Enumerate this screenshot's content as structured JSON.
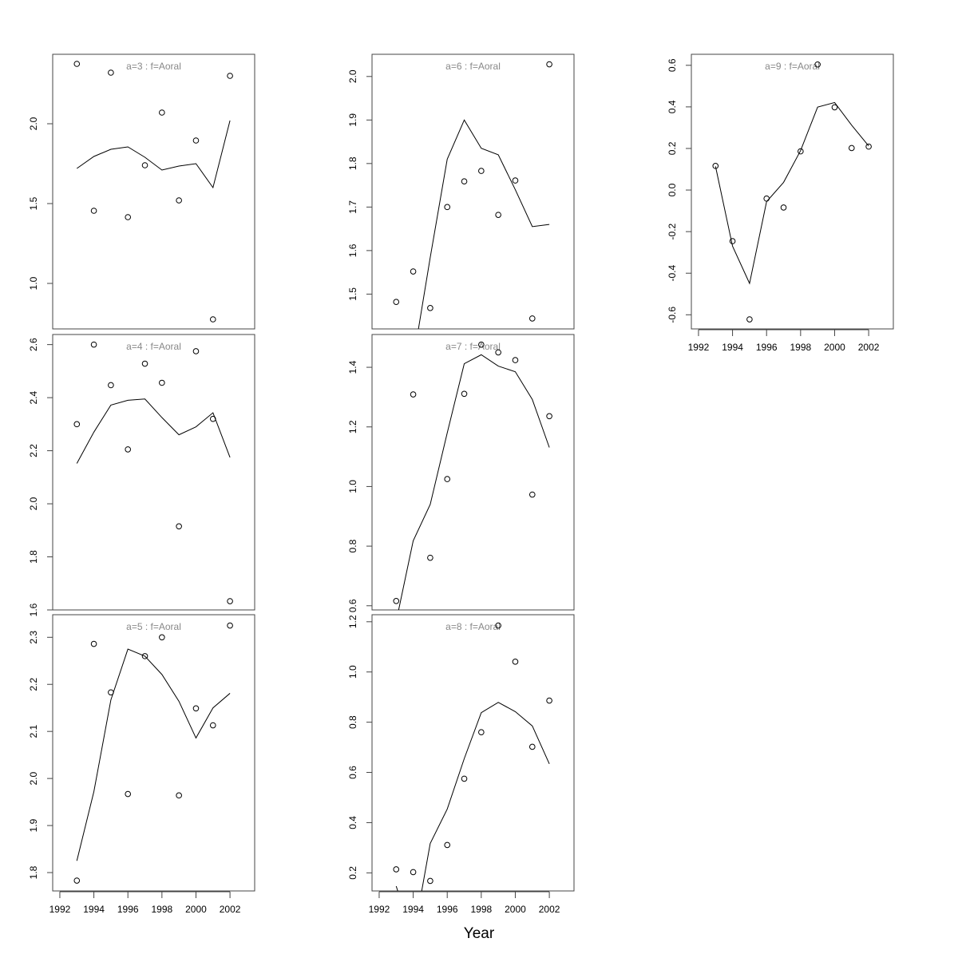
{
  "chart_data": {
    "type": "scatter+line",
    "xlabel": "Year",
    "x": [
      1993,
      1994,
      1995,
      1996,
      1997,
      1998,
      1999,
      2000,
      2001,
      2002
    ],
    "xlim": [
      1991.58,
      2003.45
    ],
    "xticks": [
      "1992",
      "1994",
      "1996",
      "1998",
      "2000",
      "2002"
    ],
    "grid": false,
    "title_color": "#888888",
    "panels": [
      {
        "title": "a=3  :  f=Aoral",
        "ylim": [
          0.715,
          2.435
        ],
        "yticks": [
          "1.0",
          "1.5",
          "2.0"
        ],
        "points": [
          2.375,
          1.455,
          2.32,
          1.415,
          1.74,
          2.07,
          1.52,
          1.895,
          0.775,
          2.3
        ],
        "line": [
          1.72,
          1.795,
          1.84,
          1.855,
          1.79,
          1.71,
          1.735,
          1.75,
          1.6,
          2.02
        ]
      },
      {
        "title": "a=4  :  f=Aoral",
        "ylim": [
          1.6,
          2.638
        ],
        "yticks": [
          "1.6",
          "1.8",
          "2.0",
          "2.2",
          "2.4",
          "2.6"
        ],
        "points": [
          2.3,
          2.6,
          2.447,
          2.205,
          2.528,
          2.456,
          1.915,
          2.575,
          2.32,
          1.633
        ],
        "line": [
          2.152,
          2.27,
          2.372,
          2.39,
          2.395,
          2.325,
          2.26,
          2.29,
          2.343,
          2.175
        ]
      },
      {
        "title": "a=5  :  f=Aoral",
        "ylim": [
          1.761,
          2.348
        ],
        "yticks": [
          "1.8",
          "1.9",
          "2.0",
          "2.1",
          "2.2",
          "2.3"
        ],
        "points": [
          1.783,
          2.286,
          2.183,
          1.967,
          2.26,
          2.3,
          1.964,
          2.149,
          2.113,
          2.325
        ],
        "line": [
          1.825,
          1.972,
          2.167,
          2.275,
          2.26,
          2.221,
          2.164,
          2.086,
          2.15,
          2.181
        ]
      },
      {
        "title": "a=6  :  f=Aoral",
        "ylim": [
          1.42,
          2.051
        ],
        "yticks": [
          "1.5",
          "1.6",
          "1.7",
          "1.8",
          "1.9",
          "2.0"
        ],
        "points": [
          1.482,
          1.552,
          1.468,
          1.7,
          1.759,
          1.783,
          1.682,
          1.761,
          1.444,
          2.028
        ],
        "line": [
          1.2,
          1.347,
          1.584,
          1.81,
          1.9,
          1.835,
          1.82,
          1.74,
          1.655,
          1.66
        ]
      },
      {
        "title": "a=7  :  f=Aoral",
        "ylim": [
          0.586,
          1.51
        ],
        "yticks": [
          "0.6",
          "0.8",
          "1.0",
          "1.2",
          "1.4"
        ],
        "points": [
          0.616,
          1.309,
          0.761,
          1.025,
          1.311,
          1.476,
          1.45,
          1.424,
          0.973,
          1.236
        ],
        "line": [
          0.547,
          0.818,
          0.94,
          1.18,
          1.412,
          1.442,
          1.404,
          1.385,
          1.292,
          1.131
        ]
      },
      {
        "title": "a=8  :  f=Aoral",
        "ylim": [
          0.128,
          1.228
        ],
        "yticks": [
          "0.2",
          "0.4",
          "0.6",
          "0.8",
          "1.0",
          "1.2"
        ],
        "points": [
          0.214,
          0.203,
          0.168,
          0.311,
          0.575,
          0.76,
          1.185,
          1.041,
          0.702,
          0.886
        ],
        "line": [
          0.147,
          -0.061,
          0.317,
          0.454,
          0.655,
          0.838,
          0.879,
          0.842,
          0.785,
          0.634
        ]
      },
      {
        "title": "a=9  :  f=Aoral",
        "ylim": [
          -0.668,
          0.653
        ],
        "yticks": [
          "-0.6",
          "-0.4",
          "-0.2",
          "0.0",
          "0.2",
          "0.4",
          "0.6"
        ],
        "points": [
          0.116,
          -0.246,
          -0.622,
          -0.041,
          -0.084,
          0.186,
          0.604,
          0.398,
          0.202,
          0.209
        ],
        "line": [
          0.114,
          -0.27,
          -0.449,
          -0.056,
          0.037,
          0.19,
          0.399,
          0.421,
          0.312,
          0.212
        ]
      }
    ]
  }
}
